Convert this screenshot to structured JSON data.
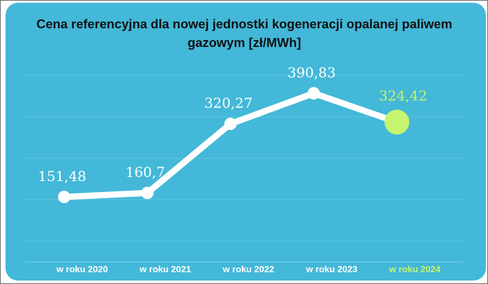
{
  "chart_data": {
    "type": "line",
    "title": "Cena referencyjna dla nowej jednostki kogeneracji opalanej paliwem gazowym [zł/MWh]",
    "categories": [
      "w roku 2020",
      "w roku 2021",
      "w roku 2022",
      "w roku 2023",
      "w roku 2024"
    ],
    "values": [
      151.48,
      160.7,
      320.27,
      390.83,
      324.42
    ],
    "value_labels": [
      "151,48",
      "160,7",
      "320,27",
      "390,83",
      "324,42"
    ],
    "highlight_index": 4,
    "ylim": [
      100,
      450
    ],
    "grid": true,
    "legend": "none",
    "colors": {
      "background": "#43b8d8",
      "line": "#ffffff",
      "point": "#ffffff",
      "highlight": "#c7f46e",
      "grid": "#5cc3df",
      "title": "#111111"
    }
  }
}
